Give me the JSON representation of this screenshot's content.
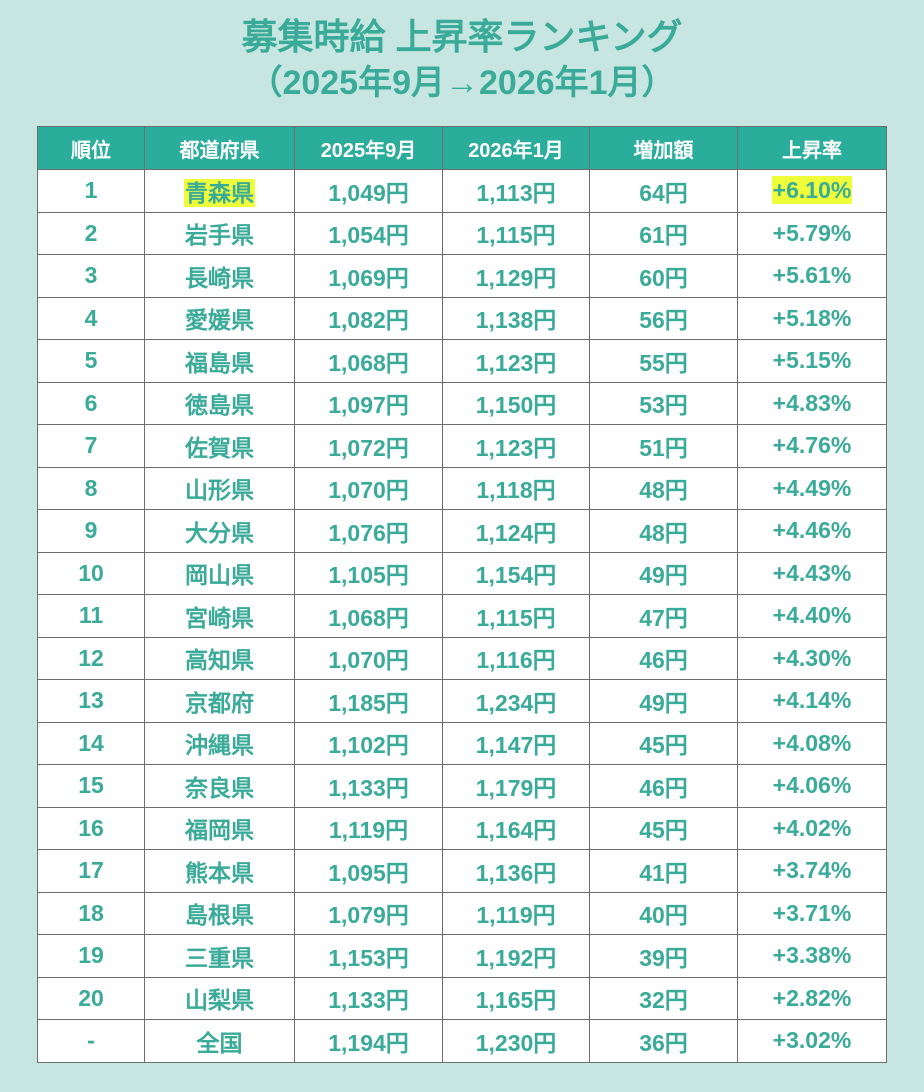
{
  "title": {
    "line1": "募集時給 上昇率ランキング",
    "line2": "（2025年9月→2026年1月）"
  },
  "colors": {
    "background": "#c8e6e1",
    "header_bg": "#2aad9a",
    "text_accent": "#3aab98",
    "highlight": "#eeff3a"
  },
  "table": {
    "headers": [
      "順位",
      "都道府県",
      "2025年9月",
      "2026年1月",
      "増加額",
      "上昇率"
    ],
    "rows": [
      {
        "rank": "1",
        "prefecture": "青森県",
        "sep2025": "1,049円",
        "jan2026": "1,113円",
        "increase": "64円",
        "rate": "+6.10%",
        "highlighted": true
      },
      {
        "rank": "2",
        "prefecture": "岩手県",
        "sep2025": "1,054円",
        "jan2026": "1,115円",
        "increase": "61円",
        "rate": "+5.79%"
      },
      {
        "rank": "3",
        "prefecture": "長崎県",
        "sep2025": "1,069円",
        "jan2026": "1,129円",
        "increase": "60円",
        "rate": "+5.61%"
      },
      {
        "rank": "4",
        "prefecture": "愛媛県",
        "sep2025": "1,082円",
        "jan2026": "1,138円",
        "increase": "56円",
        "rate": "+5.18%"
      },
      {
        "rank": "5",
        "prefecture": "福島県",
        "sep2025": "1,068円",
        "jan2026": "1,123円",
        "increase": "55円",
        "rate": "+5.15%"
      },
      {
        "rank": "6",
        "prefecture": "徳島県",
        "sep2025": "1,097円",
        "jan2026": "1,150円",
        "increase": "53円",
        "rate": "+4.83%"
      },
      {
        "rank": "7",
        "prefecture": "佐賀県",
        "sep2025": "1,072円",
        "jan2026": "1,123円",
        "increase": "51円",
        "rate": "+4.76%"
      },
      {
        "rank": "8",
        "prefecture": "山形県",
        "sep2025": "1,070円",
        "jan2026": "1,118円",
        "increase": "48円",
        "rate": "+4.49%"
      },
      {
        "rank": "9",
        "prefecture": "大分県",
        "sep2025": "1,076円",
        "jan2026": "1,124円",
        "increase": "48円",
        "rate": "+4.46%"
      },
      {
        "rank": "10",
        "prefecture": "岡山県",
        "sep2025": "1,105円",
        "jan2026": "1,154円",
        "increase": "49円",
        "rate": "+4.43%"
      },
      {
        "rank": "11",
        "prefecture": "宮崎県",
        "sep2025": "1,068円",
        "jan2026": "1,115円",
        "increase": "47円",
        "rate": "+4.40%"
      },
      {
        "rank": "12",
        "prefecture": "高知県",
        "sep2025": "1,070円",
        "jan2026": "1,116円",
        "increase": "46円",
        "rate": "+4.30%"
      },
      {
        "rank": "13",
        "prefecture": "京都府",
        "sep2025": "1,185円",
        "jan2026": "1,234円",
        "increase": "49円",
        "rate": "+4.14%"
      },
      {
        "rank": "14",
        "prefecture": "沖縄県",
        "sep2025": "1,102円",
        "jan2026": "1,147円",
        "increase": "45円",
        "rate": "+4.08%"
      },
      {
        "rank": "15",
        "prefecture": "奈良県",
        "sep2025": "1,133円",
        "jan2026": "1,179円",
        "increase": "46円",
        "rate": "+4.06%"
      },
      {
        "rank": "16",
        "prefecture": "福岡県",
        "sep2025": "1,119円",
        "jan2026": "1,164円",
        "increase": "45円",
        "rate": "+4.02%"
      },
      {
        "rank": "17",
        "prefecture": "熊本県",
        "sep2025": "1,095円",
        "jan2026": "1,136円",
        "increase": "41円",
        "rate": "+3.74%"
      },
      {
        "rank": "18",
        "prefecture": "島根県",
        "sep2025": "1,079円",
        "jan2026": "1,119円",
        "increase": "40円",
        "rate": "+3.71%"
      },
      {
        "rank": "19",
        "prefecture": "三重県",
        "sep2025": "1,153円",
        "jan2026": "1,192円",
        "increase": "39円",
        "rate": "+3.38%"
      },
      {
        "rank": "20",
        "prefecture": "山梨県",
        "sep2025": "1,133円",
        "jan2026": "1,165円",
        "increase": "32円",
        "rate": "+2.82%"
      },
      {
        "rank": "-",
        "prefecture": "全国",
        "sep2025": "1,194円",
        "jan2026": "1,230円",
        "increase": "36円",
        "rate": "+3.02%"
      }
    ]
  }
}
